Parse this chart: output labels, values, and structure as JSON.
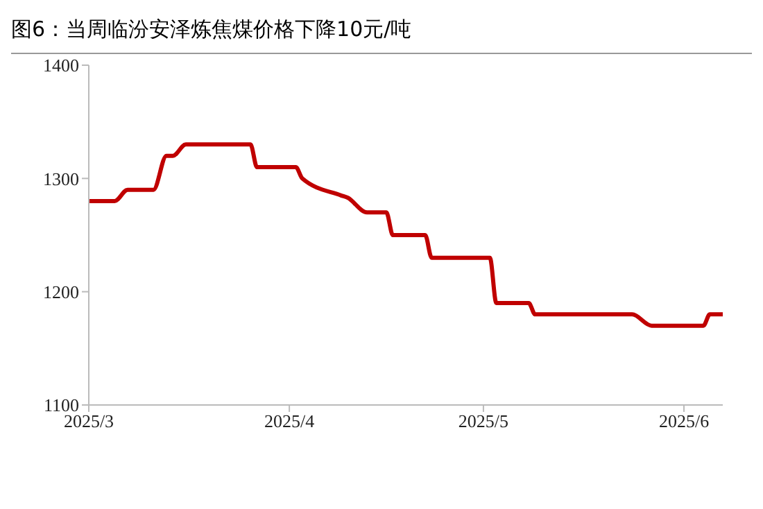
{
  "chart_data": {
    "type": "line",
    "title": "图6：当周临汾安泽炼焦煤价格下降10元/吨",
    "x": [
      "2025-03-01",
      "2025-03-05",
      "2025-03-07",
      "2025-03-11",
      "2025-03-13",
      "2025-03-14",
      "2025-03-16",
      "2025-03-26",
      "2025-03-27",
      "2025-04-02",
      "2025-04-03",
      "2025-04-09",
      "2025-04-10",
      "2025-04-13",
      "2025-04-16",
      "2025-04-17",
      "2025-04-22",
      "2025-04-23",
      "2025-05-02",
      "2025-05-03",
      "2025-05-08",
      "2025-05-09",
      "2025-05-24",
      "2025-05-27",
      "2025-06-04",
      "2025-06-05",
      "2025-06-07"
    ],
    "series": [
      {
        "color": "#c00000",
        "values": [
          1280,
          1280,
          1290,
          1290,
          1320,
          1320,
          1330,
          1330,
          1310,
          1310,
          1300,
          1285,
          1283,
          1270,
          1270,
          1250,
          1250,
          1230,
          1230,
          1190,
          1190,
          1180,
          1180,
          1170,
          1170,
          1180,
          1180
        ]
      }
    ],
    "xlim": [
      "2025-03-01",
      "2025-06-07"
    ],
    "xticks": [
      {
        "value": "2025-03-01",
        "label": "2025/3"
      },
      {
        "value": "2025-04-01",
        "label": "2025/4"
      },
      {
        "value": "2025-05-01",
        "label": "2025/5"
      },
      {
        "value": "2025-06-01",
        "label": "2025/6"
      }
    ],
    "ylim": [
      1100,
      1400
    ],
    "yticks": [
      1100,
      1200,
      1300,
      1400
    ],
    "grid": false,
    "legend": false,
    "marker": "none",
    "line_style": "solid"
  }
}
